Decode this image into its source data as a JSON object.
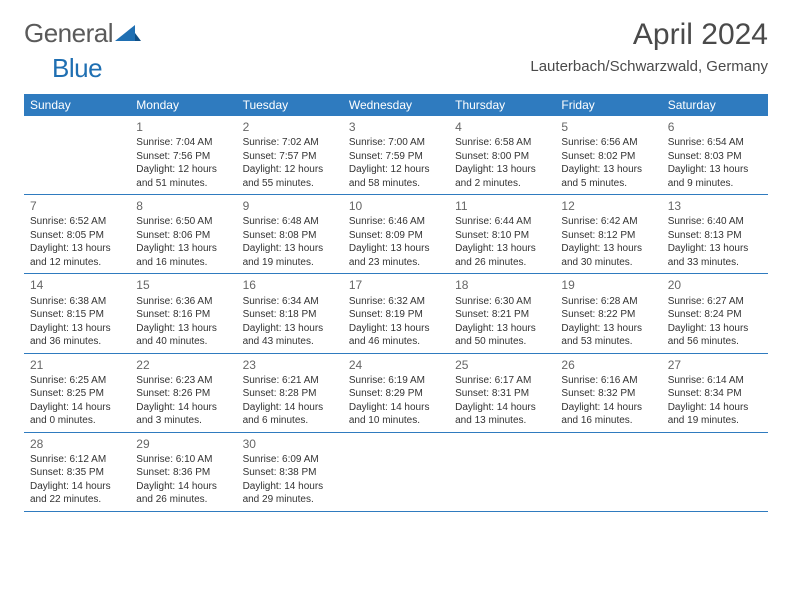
{
  "logo": {
    "part1": "General",
    "part2": "Blue"
  },
  "title": "April 2024",
  "location": "Lauterbach/Schwarzwald, Germany",
  "colors": {
    "header_bg": "#2f7bbf",
    "header_text": "#ffffff",
    "text": "#333333",
    "daynum": "#666666",
    "rule": "#2f7bbf",
    "logo_gray": "#5a5a5a",
    "logo_blue": "#1f6fb2"
  },
  "weekdays": [
    "Sunday",
    "Monday",
    "Tuesday",
    "Wednesday",
    "Thursday",
    "Friday",
    "Saturday"
  ],
  "weeks": [
    [
      {
        "blank": true
      },
      {
        "n": "1",
        "sr": "Sunrise: 7:04 AM",
        "ss": "Sunset: 7:56 PM",
        "d1": "Daylight: 12 hours",
        "d2": "and 51 minutes."
      },
      {
        "n": "2",
        "sr": "Sunrise: 7:02 AM",
        "ss": "Sunset: 7:57 PM",
        "d1": "Daylight: 12 hours",
        "d2": "and 55 minutes."
      },
      {
        "n": "3",
        "sr": "Sunrise: 7:00 AM",
        "ss": "Sunset: 7:59 PM",
        "d1": "Daylight: 12 hours",
        "d2": "and 58 minutes."
      },
      {
        "n": "4",
        "sr": "Sunrise: 6:58 AM",
        "ss": "Sunset: 8:00 PM",
        "d1": "Daylight: 13 hours",
        "d2": "and 2 minutes."
      },
      {
        "n": "5",
        "sr": "Sunrise: 6:56 AM",
        "ss": "Sunset: 8:02 PM",
        "d1": "Daylight: 13 hours",
        "d2": "and 5 minutes."
      },
      {
        "n": "6",
        "sr": "Sunrise: 6:54 AM",
        "ss": "Sunset: 8:03 PM",
        "d1": "Daylight: 13 hours",
        "d2": "and 9 minutes."
      }
    ],
    [
      {
        "n": "7",
        "sr": "Sunrise: 6:52 AM",
        "ss": "Sunset: 8:05 PM",
        "d1": "Daylight: 13 hours",
        "d2": "and 12 minutes."
      },
      {
        "n": "8",
        "sr": "Sunrise: 6:50 AM",
        "ss": "Sunset: 8:06 PM",
        "d1": "Daylight: 13 hours",
        "d2": "and 16 minutes."
      },
      {
        "n": "9",
        "sr": "Sunrise: 6:48 AM",
        "ss": "Sunset: 8:08 PM",
        "d1": "Daylight: 13 hours",
        "d2": "and 19 minutes."
      },
      {
        "n": "10",
        "sr": "Sunrise: 6:46 AM",
        "ss": "Sunset: 8:09 PM",
        "d1": "Daylight: 13 hours",
        "d2": "and 23 minutes."
      },
      {
        "n": "11",
        "sr": "Sunrise: 6:44 AM",
        "ss": "Sunset: 8:10 PM",
        "d1": "Daylight: 13 hours",
        "d2": "and 26 minutes."
      },
      {
        "n": "12",
        "sr": "Sunrise: 6:42 AM",
        "ss": "Sunset: 8:12 PM",
        "d1": "Daylight: 13 hours",
        "d2": "and 30 minutes."
      },
      {
        "n": "13",
        "sr": "Sunrise: 6:40 AM",
        "ss": "Sunset: 8:13 PM",
        "d1": "Daylight: 13 hours",
        "d2": "and 33 minutes."
      }
    ],
    [
      {
        "n": "14",
        "sr": "Sunrise: 6:38 AM",
        "ss": "Sunset: 8:15 PM",
        "d1": "Daylight: 13 hours",
        "d2": "and 36 minutes."
      },
      {
        "n": "15",
        "sr": "Sunrise: 6:36 AM",
        "ss": "Sunset: 8:16 PM",
        "d1": "Daylight: 13 hours",
        "d2": "and 40 minutes."
      },
      {
        "n": "16",
        "sr": "Sunrise: 6:34 AM",
        "ss": "Sunset: 8:18 PM",
        "d1": "Daylight: 13 hours",
        "d2": "and 43 minutes."
      },
      {
        "n": "17",
        "sr": "Sunrise: 6:32 AM",
        "ss": "Sunset: 8:19 PM",
        "d1": "Daylight: 13 hours",
        "d2": "and 46 minutes."
      },
      {
        "n": "18",
        "sr": "Sunrise: 6:30 AM",
        "ss": "Sunset: 8:21 PM",
        "d1": "Daylight: 13 hours",
        "d2": "and 50 minutes."
      },
      {
        "n": "19",
        "sr": "Sunrise: 6:28 AM",
        "ss": "Sunset: 8:22 PM",
        "d1": "Daylight: 13 hours",
        "d2": "and 53 minutes."
      },
      {
        "n": "20",
        "sr": "Sunrise: 6:27 AM",
        "ss": "Sunset: 8:24 PM",
        "d1": "Daylight: 13 hours",
        "d2": "and 56 minutes."
      }
    ],
    [
      {
        "n": "21",
        "sr": "Sunrise: 6:25 AM",
        "ss": "Sunset: 8:25 PM",
        "d1": "Daylight: 14 hours",
        "d2": "and 0 minutes."
      },
      {
        "n": "22",
        "sr": "Sunrise: 6:23 AM",
        "ss": "Sunset: 8:26 PM",
        "d1": "Daylight: 14 hours",
        "d2": "and 3 minutes."
      },
      {
        "n": "23",
        "sr": "Sunrise: 6:21 AM",
        "ss": "Sunset: 8:28 PM",
        "d1": "Daylight: 14 hours",
        "d2": "and 6 minutes."
      },
      {
        "n": "24",
        "sr": "Sunrise: 6:19 AM",
        "ss": "Sunset: 8:29 PM",
        "d1": "Daylight: 14 hours",
        "d2": "and 10 minutes."
      },
      {
        "n": "25",
        "sr": "Sunrise: 6:17 AM",
        "ss": "Sunset: 8:31 PM",
        "d1": "Daylight: 14 hours",
        "d2": "and 13 minutes."
      },
      {
        "n": "26",
        "sr": "Sunrise: 6:16 AM",
        "ss": "Sunset: 8:32 PM",
        "d1": "Daylight: 14 hours",
        "d2": "and 16 minutes."
      },
      {
        "n": "27",
        "sr": "Sunrise: 6:14 AM",
        "ss": "Sunset: 8:34 PM",
        "d1": "Daylight: 14 hours",
        "d2": "and 19 minutes."
      }
    ],
    [
      {
        "n": "28",
        "sr": "Sunrise: 6:12 AM",
        "ss": "Sunset: 8:35 PM",
        "d1": "Daylight: 14 hours",
        "d2": "and 22 minutes."
      },
      {
        "n": "29",
        "sr": "Sunrise: 6:10 AM",
        "ss": "Sunset: 8:36 PM",
        "d1": "Daylight: 14 hours",
        "d2": "and 26 minutes."
      },
      {
        "n": "30",
        "sr": "Sunrise: 6:09 AM",
        "ss": "Sunset: 8:38 PM",
        "d1": "Daylight: 14 hours",
        "d2": "and 29 minutes."
      },
      {
        "blank": true
      },
      {
        "blank": true
      },
      {
        "blank": true
      },
      {
        "blank": true
      }
    ]
  ]
}
